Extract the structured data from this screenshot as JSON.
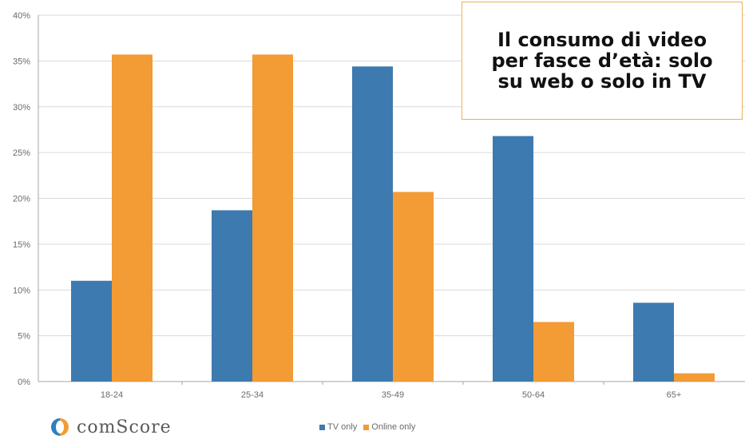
{
  "chart_data": {
    "type": "bar",
    "title": "Il consumo di video per fasce d’età: solo su web o solo in TV",
    "categories": [
      "18-24",
      "25-34",
      "35-49",
      "50-64",
      "65+"
    ],
    "series": [
      {
        "name": "TV only",
        "values": [
          11,
          18.7,
          34.4,
          26.8,
          8.6
        ],
        "color": "#3d7aaf"
      },
      {
        "name": "Online only",
        "values": [
          35.7,
          35.7,
          20.7,
          6.5,
          0.9
        ],
        "color": "#f39b35"
      }
    ],
    "ylim": [
      0,
      40
    ],
    "yticks": [
      "0%",
      "5%",
      "10%",
      "15%",
      "20%",
      "25%",
      "30%",
      "35%",
      "40%"
    ],
    "grid": true,
    "legend_position": "bottom-center"
  },
  "logo": {
    "text": "comScore"
  },
  "colors": {
    "grid": "#d9d9d9",
    "axis": "#a6a6a6",
    "title_border": "#e9b25a"
  }
}
